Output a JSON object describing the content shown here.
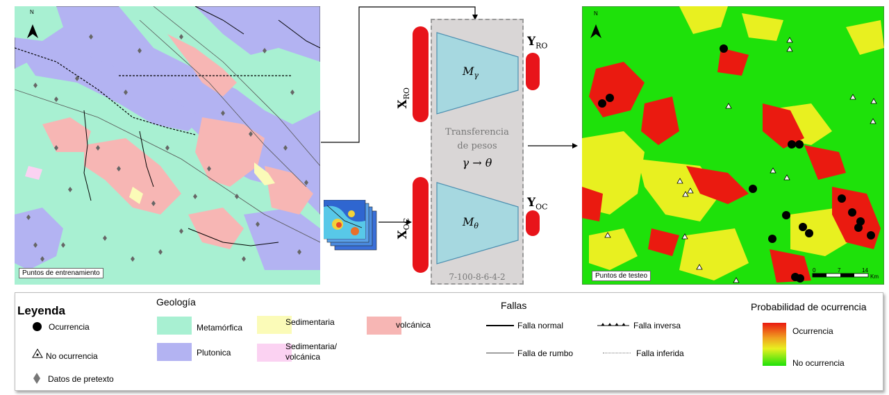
{
  "left_map": {
    "label": "Puntos de entrenamiento",
    "north": "N"
  },
  "right_map": {
    "label": "Puntos de testeo",
    "north": "N",
    "scale_ticks": [
      "0",
      "7",
      "14"
    ],
    "scale_unit": "Km"
  },
  "model": {
    "x_ro": "X",
    "x_ro_sub": "RO",
    "y_ro": "Y",
    "y_ro_sub": "RO",
    "x_oc": "X",
    "x_oc_sub": "OC",
    "y_oc": "Y",
    "y_oc_sub": "OC",
    "m_gamma": "M",
    "m_gamma_sub": "γ",
    "m_theta": "M",
    "m_theta_sub": "θ",
    "transfer_line1": "Transferencia",
    "transfer_line2": "de pesos",
    "transfer_formula": "γ → θ",
    "architecture": "7-100-8-6-4-2"
  },
  "legend": {
    "title": "Leyenda",
    "ocurrencia": "Ocurrencia",
    "no_ocurrencia": "No ocurrencia",
    "pretexto": "Datos de pretexto",
    "geologia_title": "Geología",
    "geo": {
      "metamorfica": "Metamórfica",
      "plutonica": "Plutonica",
      "sedimentaria": "Sedimentaria",
      "sed_volc_1": "Sedimentaria/",
      "sed_volc_2": "volcánica",
      "volcanica": "volcánica"
    },
    "geo_colors": {
      "metamorfica": "#a8f0d2",
      "plutonica": "#b3b3f2",
      "sedimentaria": "#fbfbb8",
      "sed_volc": "#fbd2f2",
      "volcanica": "#f7b6b4"
    },
    "fallas_title": "Fallas",
    "falla_normal": "Falla normal",
    "falla_inversa": "Falla inversa",
    "falla_rumbo": "Falla de rumbo",
    "falla_inferida": "Falla inferida",
    "prob_title": "Probabilidad de ocurrencia",
    "prob_high": "Ocurrencia",
    "prob_low": "No ocurrencia"
  }
}
